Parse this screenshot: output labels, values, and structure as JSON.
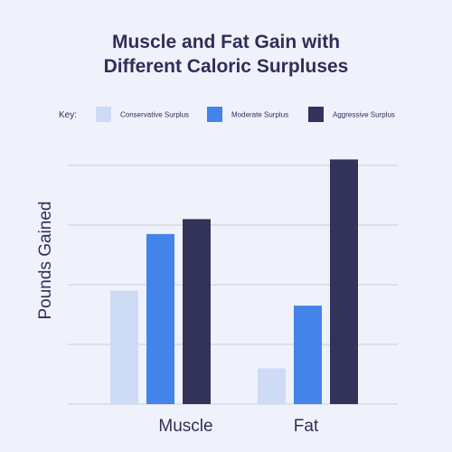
{
  "chart_data": {
    "type": "bar",
    "title_lines": [
      "Muscle and Fat Gain with",
      "Different Caloric Surpluses"
    ],
    "key_heading": "Key:",
    "ylabel": "Pounds  Gained",
    "xlabel": "",
    "categories": [
      "Muscle",
      "Fat"
    ],
    "series": [
      {
        "name": "Conservative Surplus",
        "color": "#cddcf4",
        "values": [
          1.9,
          0.6
        ]
      },
      {
        "name": "Moderate Surplus",
        "color": "#4483ea",
        "values": [
          2.85,
          1.65
        ]
      },
      {
        "name": "Aggressive Surplus",
        "color": "#333359",
        "values": [
          3.1,
          4.1
        ]
      }
    ],
    "ylim": [
      0,
      4
    ],
    "y_gridlines": [
      0,
      1,
      2,
      3,
      4
    ],
    "y_tick_labels_shown": false,
    "legend_position": "top",
    "grid": true
  }
}
